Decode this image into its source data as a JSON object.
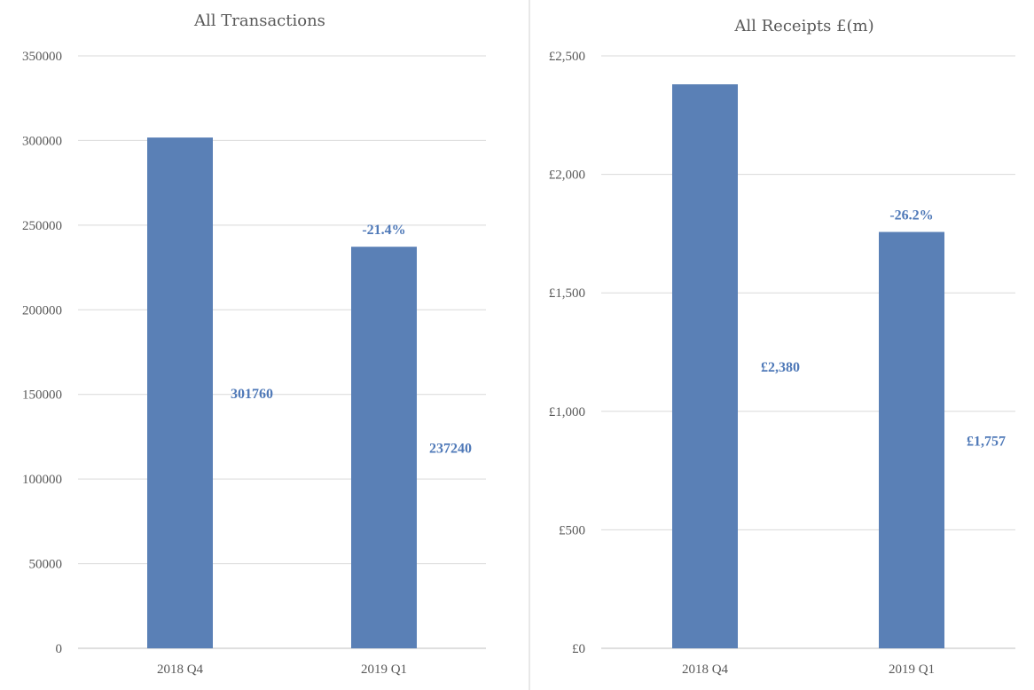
{
  "accent": "#5a80b6",
  "label_color": "#4f79b8",
  "chart_data": [
    {
      "type": "bar",
      "title": "All Transactions",
      "categories": [
        "2018 Q4",
        "2019 Q1"
      ],
      "values": [
        301760,
        237240
      ],
      "value_labels": [
        "301760",
        "237240"
      ],
      "change_labels": [
        "",
        "-21.4%"
      ],
      "ylim": [
        0,
        350000
      ],
      "yticks": [
        0,
        50000,
        100000,
        150000,
        200000,
        250000,
        300000,
        350000
      ],
      "ytick_labels": [
        "0",
        "50000",
        "100000",
        "150000",
        "200000",
        "250000",
        "300000",
        "350000"
      ],
      "xlabel": "",
      "ylabel": "",
      "grid": true,
      "legend": "none"
    },
    {
      "type": "bar",
      "title": "All Receipts £(m)",
      "categories": [
        "2018 Q4",
        "2019 Q1"
      ],
      "values": [
        2380,
        1757
      ],
      "value_labels": [
        "£2,380",
        "£1,757"
      ],
      "change_labels": [
        "",
        "-26.2%"
      ],
      "ylim": [
        0,
        2500
      ],
      "yticks": [
        0,
        500,
        1000,
        1500,
        2000,
        2500
      ],
      "ytick_labels": [
        "£0",
        "£500",
        "£1,000",
        "£1,500",
        "£2,000",
        "£2,500"
      ],
      "xlabel": "",
      "ylabel": "",
      "grid": true,
      "legend": "none"
    }
  ]
}
